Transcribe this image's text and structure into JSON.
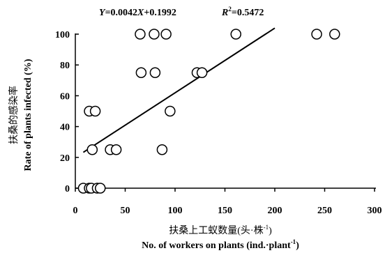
{
  "chart_data": {
    "type": "scatter",
    "equation": {
      "y_var": "Y",
      "eq": "=0.0042",
      "x_var": "X",
      "rest": "+0.1992",
      "r_var": "R",
      "r_sup": "2",
      "r_val": "=0.5472"
    },
    "fit": {
      "slope": 0.0042,
      "intercept": 0.1992
    },
    "xlabel_cn": "扶桑上工蚁数量(头·株",
    "xlabel_cn_sup": "-1",
    "xlabel_cn_end": ")",
    "xlabel_en": "No. of workers on plants (ind.·plant",
    "xlabel_en_sup": "-1",
    "xlabel_en_end": ")",
    "ylabel_cn": "扶桑的感染率",
    "ylabel_en": "Rate of plants infected (%)",
    "xlim": [
      0,
      300
    ],
    "ylim": [
      0,
      100
    ],
    "xticks": [
      0,
      50,
      100,
      150,
      200,
      250,
      300
    ],
    "yticks": [
      0,
      20,
      40,
      60,
      80,
      100
    ],
    "grid": false,
    "points": [
      {
        "x": 8,
        "y": 0
      },
      {
        "x": 14,
        "y": 0
      },
      {
        "x": 16,
        "y": 0
      },
      {
        "x": 22,
        "y": 0
      },
      {
        "x": 25,
        "y": 0
      },
      {
        "x": 14,
        "y": 50
      },
      {
        "x": 20,
        "y": 50
      },
      {
        "x": 17,
        "y": 25
      },
      {
        "x": 35,
        "y": 25
      },
      {
        "x": 41,
        "y": 25
      },
      {
        "x": 65,
        "y": 100
      },
      {
        "x": 79,
        "y": 100
      },
      {
        "x": 91,
        "y": 100
      },
      {
        "x": 161,
        "y": 100
      },
      {
        "x": 242,
        "y": 100
      },
      {
        "x": 260,
        "y": 100
      },
      {
        "x": 66,
        "y": 75
      },
      {
        "x": 80,
        "y": 75
      },
      {
        "x": 122,
        "y": 75
      },
      {
        "x": 127,
        "y": 75
      },
      {
        "x": 95,
        "y": 50
      },
      {
        "x": 87,
        "y": 25
      }
    ]
  }
}
